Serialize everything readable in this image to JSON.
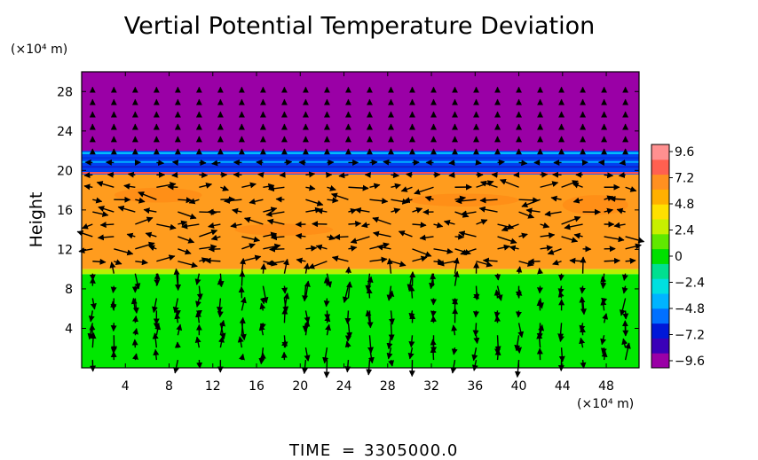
{
  "chart_data": {
    "type": "heatmap",
    "title": "Vertial Potential Temperature Deviation",
    "ylabel": "Height",
    "y_unit_label": "(×10⁴ m)",
    "x_unit_label": "(×10⁴ m)",
    "xlim": [
      0,
      51
    ],
    "ylim": [
      0,
      30
    ],
    "x_ticks": [
      "4",
      "8",
      "12",
      "16",
      "20",
      "24",
      "28",
      "32",
      "36",
      "40",
      "44",
      "48"
    ],
    "x_tick_values": [
      4,
      8,
      12,
      16,
      20,
      24,
      28,
      32,
      36,
      40,
      44,
      48
    ],
    "y_ticks": [
      "4",
      "8",
      "12",
      "16",
      "20",
      "24",
      "28"
    ],
    "y_tick_values": [
      4,
      8,
      12,
      16,
      20,
      24,
      28
    ],
    "colorbar": {
      "labels": [
        "9.6",
        "7.2",
        "4.8",
        "2.4",
        "0",
        "−2.4",
        "−4.8",
        "−7.2",
        "−9.6"
      ],
      "values": [
        9.6,
        7.2,
        4.8,
        2.4,
        0,
        -2.4,
        -4.8,
        -7.2,
        -9.6
      ],
      "range": [
        -9.6,
        9.6
      ],
      "colors": [
        "#9a00a6",
        "#3a00b8",
        "#0018d8",
        "#0070ff",
        "#00b4ff",
        "#00e0e0",
        "#00e090",
        "#00e000",
        "#60e800",
        "#c8f000",
        "#ffe000",
        "#ffb000",
        "#ff9020",
        "#ff6050",
        "#ff9090"
      ]
    },
    "field_regions": [
      {
        "name": "lower layer",
        "y_range": [
          0,
          9.5
        ],
        "value": 0.2,
        "color": "#00e800"
      },
      {
        "name": "middle layer",
        "y_range": [
          10,
          19.6
        ],
        "value": 6.5,
        "color": "#ff9c1e"
      },
      {
        "name": "transition band",
        "y_range": [
          19.6,
          22
        ],
        "value": -6.0,
        "color": "#0040f0"
      },
      {
        "name": "upper layer",
        "y_range": [
          22,
          30
        ],
        "value": -9.6,
        "color": "#9a00a6"
      }
    ],
    "grid": false,
    "vector_overlay": true
  },
  "footer": {
    "time_label": "TIME",
    "time_eq": "=",
    "time_value": "3305000.0"
  }
}
